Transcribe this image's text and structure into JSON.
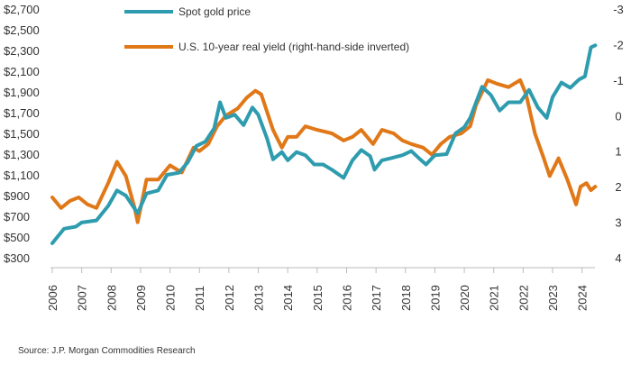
{
  "chart_data": {
    "type": "line",
    "title": "",
    "x_axis": {
      "ticks": [
        "2006",
        "2007",
        "2008",
        "2009",
        "2010",
        "2011",
        "2012",
        "2013",
        "2014",
        "2015",
        "2016",
        "2017",
        "2018",
        "2019",
        "2020",
        "2021",
        "2022",
        "2023",
        "2024"
      ],
      "range": [
        2006,
        2024.5
      ]
    },
    "y_left": {
      "ticks": [
        "$2,700",
        "$2,500",
        "$2,300",
        "$2,100",
        "$1,900",
        "$1,700",
        "$1,500",
        "$1,300",
        "$1,100",
        "$900",
        "$700",
        "$500",
        "$300"
      ],
      "range": [
        300,
        2700
      ]
    },
    "y_right": {
      "ticks": [
        "-3",
        "-2",
        "-1",
        "0",
        "1",
        "2",
        "3",
        "4"
      ],
      "range": [
        -3,
        4
      ],
      "inverted": true
    },
    "series": [
      {
        "name": "Spot gold price",
        "axis": "left",
        "color": "#2e9cae",
        "points": [
          [
            2006.0,
            440
          ],
          [
            2006.4,
            580
          ],
          [
            2006.8,
            600
          ],
          [
            2007.0,
            640
          ],
          [
            2007.5,
            660
          ],
          [
            2007.9,
            800
          ],
          [
            2008.2,
            950
          ],
          [
            2008.5,
            900
          ],
          [
            2008.9,
            730
          ],
          [
            2009.2,
            920
          ],
          [
            2009.6,
            950
          ],
          [
            2009.9,
            1100
          ],
          [
            2010.3,
            1120
          ],
          [
            2010.6,
            1220
          ],
          [
            2010.9,
            1380
          ],
          [
            2011.2,
            1420
          ],
          [
            2011.5,
            1550
          ],
          [
            2011.7,
            1800
          ],
          [
            2011.9,
            1650
          ],
          [
            2012.2,
            1680
          ],
          [
            2012.5,
            1580
          ],
          [
            2012.8,
            1750
          ],
          [
            2013.0,
            1680
          ],
          [
            2013.3,
            1450
          ],
          [
            2013.5,
            1250
          ],
          [
            2013.8,
            1320
          ],
          [
            2014.0,
            1240
          ],
          [
            2014.3,
            1320
          ],
          [
            2014.6,
            1290
          ],
          [
            2014.9,
            1200
          ],
          [
            2015.2,
            1200
          ],
          [
            2015.5,
            1150
          ],
          [
            2015.9,
            1070
          ],
          [
            2016.2,
            1240
          ],
          [
            2016.5,
            1340
          ],
          [
            2016.8,
            1280
          ],
          [
            2016.95,
            1150
          ],
          [
            2017.2,
            1240
          ],
          [
            2017.5,
            1260
          ],
          [
            2017.9,
            1290
          ],
          [
            2018.2,
            1330
          ],
          [
            2018.5,
            1250
          ],
          [
            2018.7,
            1200
          ],
          [
            2019.0,
            1290
          ],
          [
            2019.4,
            1300
          ],
          [
            2019.7,
            1500
          ],
          [
            2020.0,
            1560
          ],
          [
            2020.2,
            1650
          ],
          [
            2020.6,
            1950
          ],
          [
            2020.9,
            1870
          ],
          [
            2021.2,
            1720
          ],
          [
            2021.5,
            1800
          ],
          [
            2021.9,
            1800
          ],
          [
            2022.2,
            1920
          ],
          [
            2022.5,
            1750
          ],
          [
            2022.8,
            1650
          ],
          [
            2023.0,
            1850
          ],
          [
            2023.3,
            1990
          ],
          [
            2023.6,
            1940
          ],
          [
            2023.9,
            2020
          ],
          [
            2024.1,
            2050
          ],
          [
            2024.3,
            2330
          ],
          [
            2024.45,
            2350
          ]
        ]
      },
      {
        "name": "U.S. 10-year real yield (right-hand-side inverted)",
        "axis": "right",
        "color": "#e07818",
        "points": [
          [
            2006.0,
            2.3
          ],
          [
            2006.3,
            2.6
          ],
          [
            2006.6,
            2.4
          ],
          [
            2006.9,
            2.3
          ],
          [
            2007.2,
            2.5
          ],
          [
            2007.5,
            2.6
          ],
          [
            2007.9,
            1.9
          ],
          [
            2008.2,
            1.3
          ],
          [
            2008.5,
            1.7
          ],
          [
            2008.8,
            2.6
          ],
          [
            2008.9,
            3.0
          ],
          [
            2009.2,
            1.8
          ],
          [
            2009.6,
            1.8
          ],
          [
            2010.0,
            1.4
          ],
          [
            2010.4,
            1.6
          ],
          [
            2010.8,
            0.9
          ],
          [
            2011.0,
            1.0
          ],
          [
            2011.3,
            0.8
          ],
          [
            2011.6,
            0.3
          ],
          [
            2011.9,
            0.0
          ],
          [
            2012.3,
            -0.2
          ],
          [
            2012.6,
            -0.5
          ],
          [
            2012.9,
            -0.7
          ],
          [
            2013.1,
            -0.6
          ],
          [
            2013.5,
            0.4
          ],
          [
            2013.8,
            0.9
          ],
          [
            2014.0,
            0.6
          ],
          [
            2014.3,
            0.6
          ],
          [
            2014.6,
            0.3
          ],
          [
            2015.0,
            0.4
          ],
          [
            2015.5,
            0.5
          ],
          [
            2015.9,
            0.7
          ],
          [
            2016.2,
            0.6
          ],
          [
            2016.5,
            0.4
          ],
          [
            2016.9,
            0.8
          ],
          [
            2017.2,
            0.4
          ],
          [
            2017.6,
            0.5
          ],
          [
            2017.9,
            0.7
          ],
          [
            2018.2,
            0.8
          ],
          [
            2018.6,
            0.9
          ],
          [
            2018.9,
            1.1
          ],
          [
            2019.2,
            0.8
          ],
          [
            2019.5,
            0.6
          ],
          [
            2019.9,
            0.5
          ],
          [
            2020.2,
            0.3
          ],
          [
            2020.4,
            -0.3
          ],
          [
            2020.8,
            -1.0
          ],
          [
            2021.1,
            -0.9
          ],
          [
            2021.5,
            -0.8
          ],
          [
            2021.9,
            -1.0
          ],
          [
            2022.1,
            -0.6
          ],
          [
            2022.4,
            0.5
          ],
          [
            2022.7,
            1.2
          ],
          [
            2022.9,
            1.7
          ],
          [
            2023.2,
            1.2
          ],
          [
            2023.5,
            1.8
          ],
          [
            2023.8,
            2.5
          ],
          [
            2023.95,
            2.0
          ],
          [
            2024.15,
            1.9
          ],
          [
            2024.3,
            2.1
          ],
          [
            2024.45,
            2.0
          ]
        ]
      }
    ],
    "source": "Source: J.P. Morgan Commodities Research"
  }
}
